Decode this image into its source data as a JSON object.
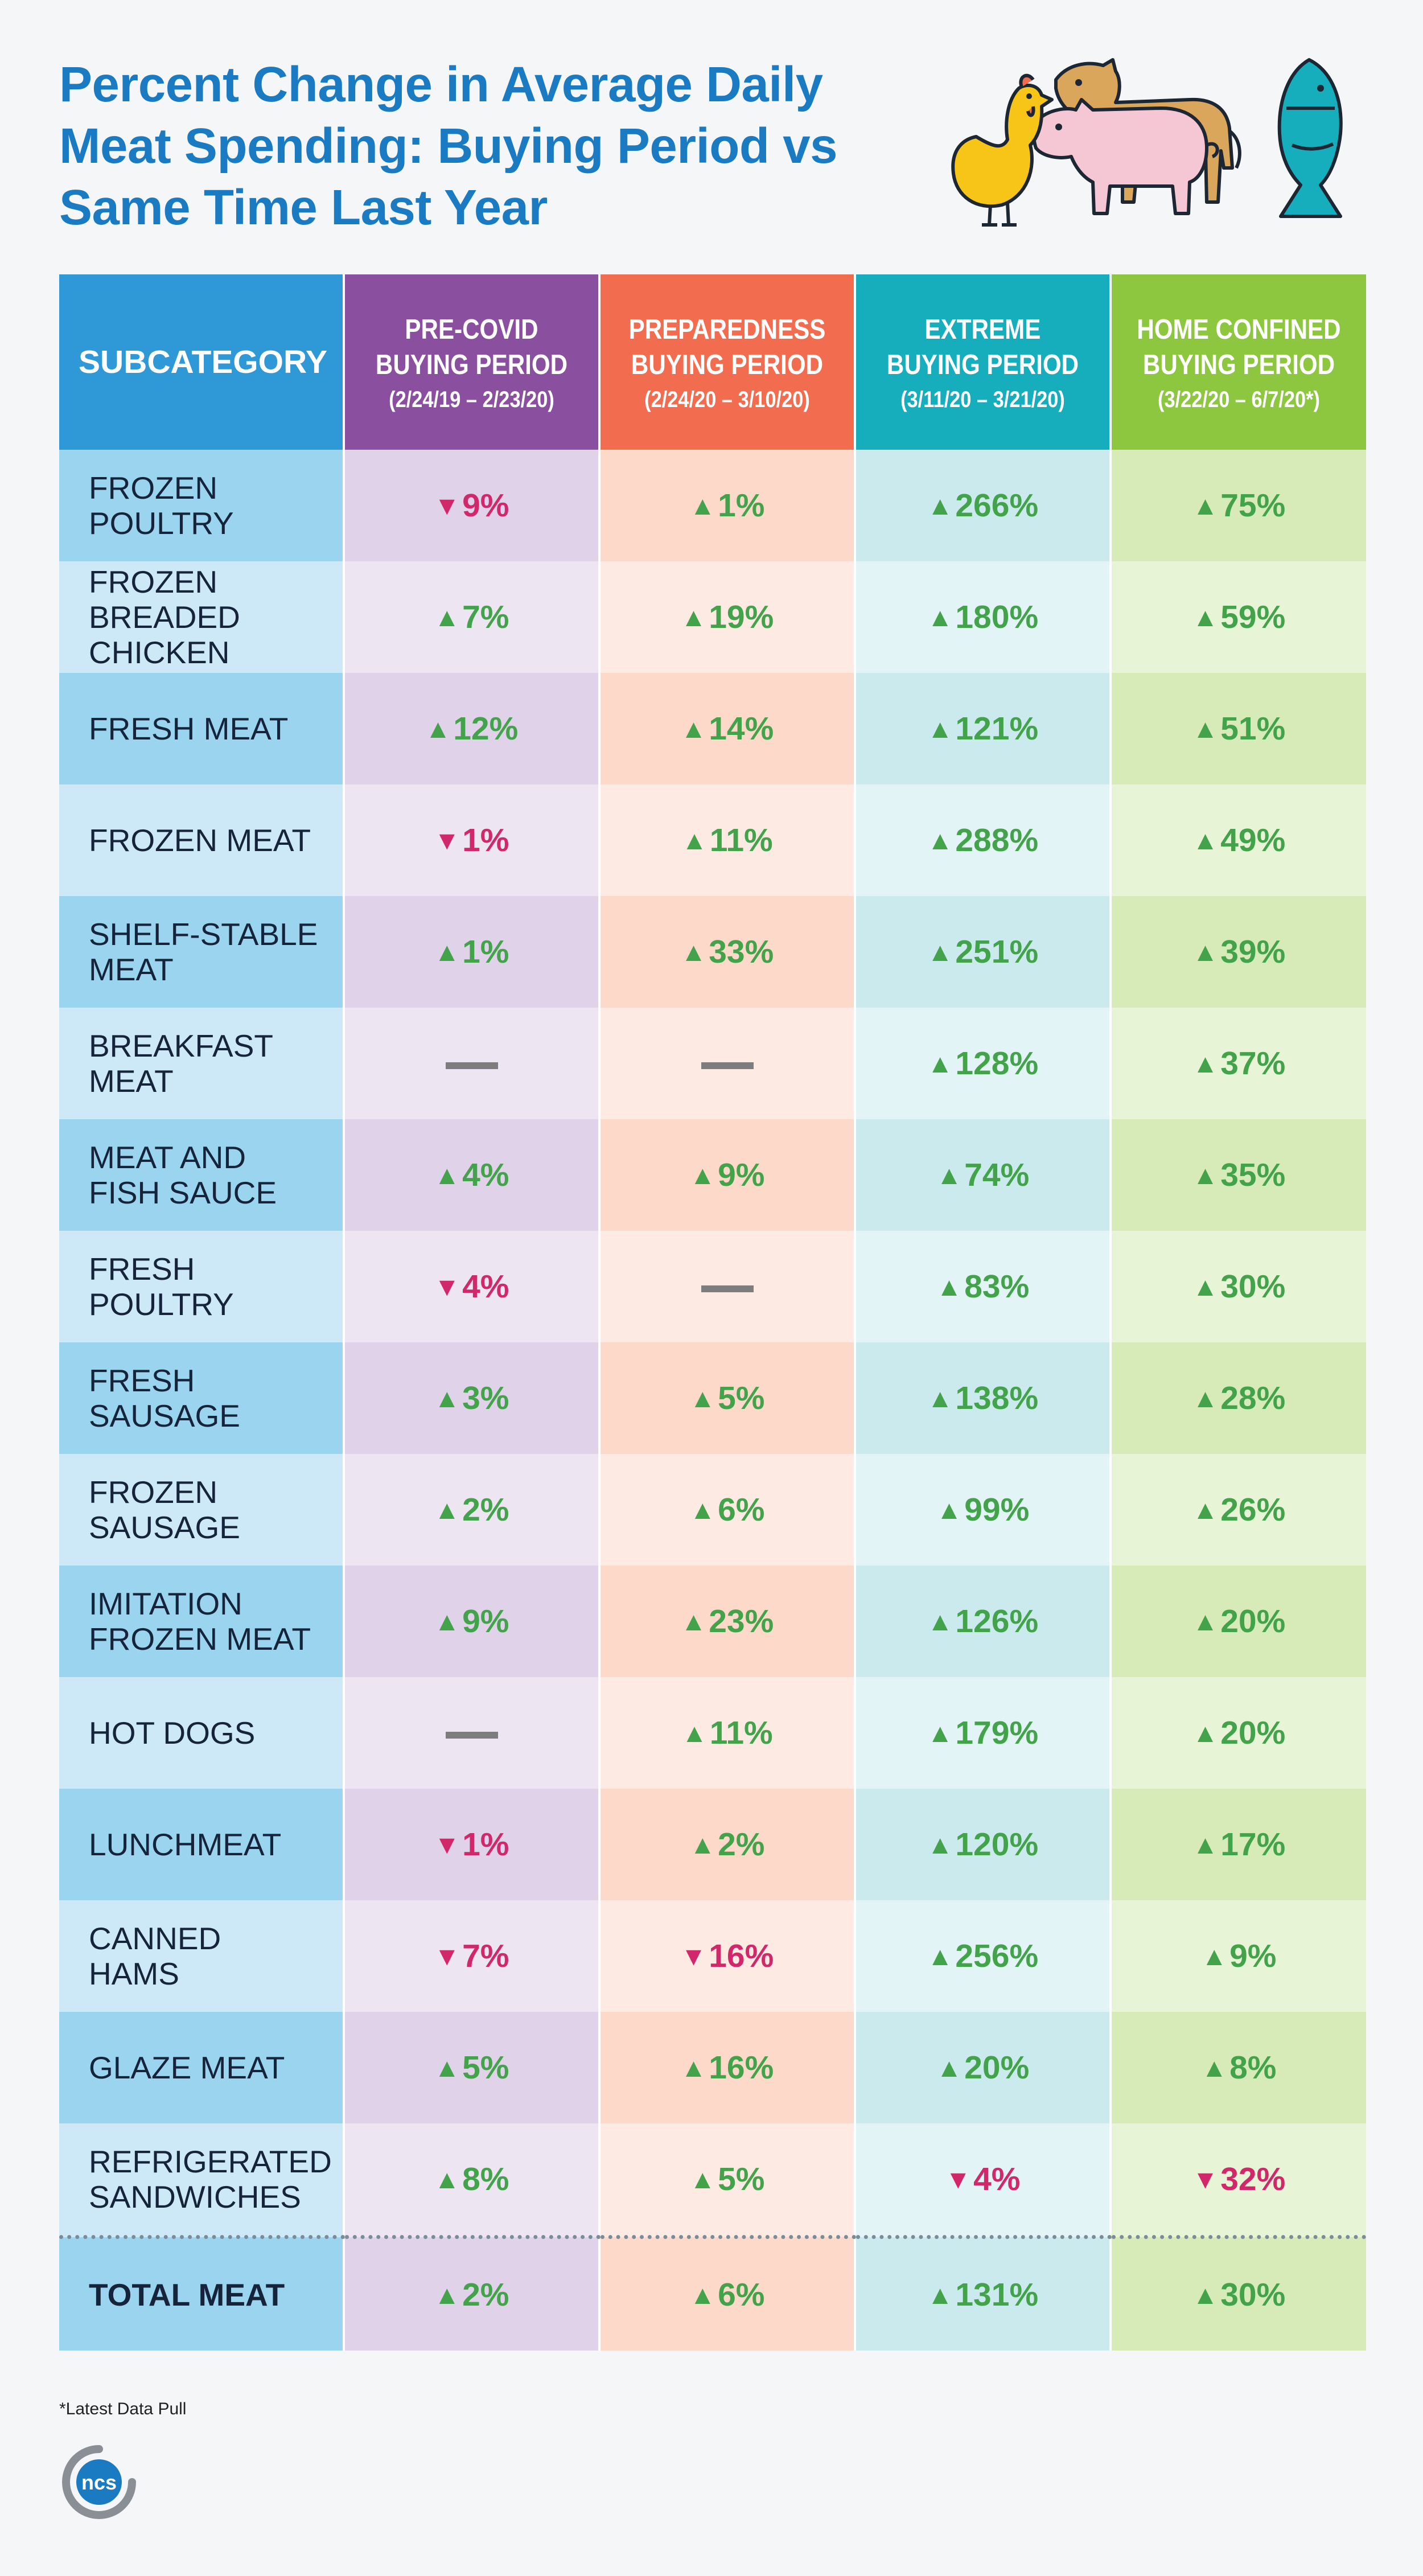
{
  "title": {
    "line1": "Percent Change in Average Daily",
    "line2": "Meat Spending: Buying Period vs",
    "line3": "Same Time Last Year"
  },
  "colors": {
    "title": "#1a7bc2",
    "subcategory_header": "#2e99d6",
    "pre_covid": "#8a4f9f",
    "preparedness": "#f26d4f",
    "extreme": "#16adbd",
    "home_confined": "#8dc63f",
    "increase": "#43a34a",
    "decrease": "#d1286b"
  },
  "chart_data": {
    "type": "table",
    "header": {
      "label": "SUBCATEGORY",
      "periods": [
        {
          "name_line1": "PRE-COVID",
          "name_line2": "BUYING PERIOD",
          "dates": "(2/24/19 – 2/23/20)"
        },
        {
          "name_line1": "PREPAREDNESS",
          "name_line2": "BUYING PERIOD",
          "dates": "(2/24/20 – 3/10/20)"
        },
        {
          "name_line1": "EXTREME",
          "name_line2": "BUYING PERIOD",
          "dates": "(3/11/20 – 3/21/20)"
        },
        {
          "name_line1": "HOME CONFINED",
          "name_line2": "BUYING PERIOD",
          "dates": "(3/22/20 – 6/7/20*)"
        }
      ]
    },
    "rows": [
      {
        "label": "FROZEN POULTRY",
        "lines": [
          "FROZEN",
          "POULTRY"
        ],
        "values": [
          -9,
          1,
          266,
          75
        ]
      },
      {
        "label": "FROZEN BREADED CHICKEN",
        "lines": [
          "FROZEN",
          "BREADED",
          "CHICKEN"
        ],
        "values": [
          7,
          19,
          180,
          59
        ]
      },
      {
        "label": "FRESH MEAT",
        "lines": [
          "FRESH MEAT"
        ],
        "values": [
          12,
          14,
          121,
          51
        ]
      },
      {
        "label": "FROZEN MEAT",
        "lines": [
          "FROZEN MEAT"
        ],
        "values": [
          -1,
          11,
          288,
          49
        ]
      },
      {
        "label": "SHELF-STABLE MEAT",
        "lines": [
          "SHELF-STABLE",
          "MEAT"
        ],
        "values": [
          1,
          33,
          251,
          39
        ]
      },
      {
        "label": "BREAKFAST MEAT",
        "lines": [
          "BREAKFAST",
          "MEAT"
        ],
        "values": [
          null,
          null,
          128,
          37
        ]
      },
      {
        "label": "MEAT AND FISH SAUCE",
        "lines": [
          "MEAT AND",
          "FISH SAUCE"
        ],
        "values": [
          4,
          9,
          74,
          35
        ]
      },
      {
        "label": "FRESH POULTRY",
        "lines": [
          "FRESH",
          "POULTRY"
        ],
        "values": [
          -4,
          null,
          83,
          30
        ]
      },
      {
        "label": "FRESH SAUSAGE",
        "lines": [
          "FRESH",
          "SAUSAGE"
        ],
        "values": [
          3,
          5,
          138,
          28
        ]
      },
      {
        "label": "FROZEN SAUSAGE",
        "lines": [
          "FROZEN",
          "SAUSAGE"
        ],
        "values": [
          2,
          6,
          99,
          26
        ]
      },
      {
        "label": "IMITATION FROZEN MEAT",
        "lines": [
          "IMITATION",
          "FROZEN MEAT"
        ],
        "values": [
          9,
          23,
          126,
          20
        ]
      },
      {
        "label": "HOT DOGS",
        "lines": [
          "HOT DOGS"
        ],
        "values": [
          null,
          11,
          179,
          20
        ]
      },
      {
        "label": "LUNCHMEAT",
        "lines": [
          "LUNCHMEAT"
        ],
        "values": [
          -1,
          2,
          120,
          17
        ]
      },
      {
        "label": "CANNED HAMS",
        "lines": [
          "CANNED",
          "HAMS"
        ],
        "values": [
          -7,
          -16,
          256,
          9
        ]
      },
      {
        "label": "GLAZE MEAT",
        "lines": [
          "GLAZE MEAT"
        ],
        "values": [
          5,
          16,
          20,
          8
        ]
      },
      {
        "label": "REFRIGERATED SANDWICHES",
        "lines": [
          "REFRIGERATED",
          "SANDWICHES"
        ],
        "values": [
          8,
          5,
          -4,
          -32
        ]
      }
    ],
    "total": {
      "label": "TOTAL MEAT",
      "values": [
        2,
        6,
        131,
        30
      ]
    },
    "unit": "%",
    "no_change_marker": "—"
  },
  "illustration": {
    "icons": [
      "chicken-icon",
      "cow-icon",
      "pig-icon",
      "fish-icon"
    ]
  },
  "footnote": "*Latest Data Pull",
  "logo": {
    "text": "ncs",
    "icon": "ncs-logo-icon"
  }
}
